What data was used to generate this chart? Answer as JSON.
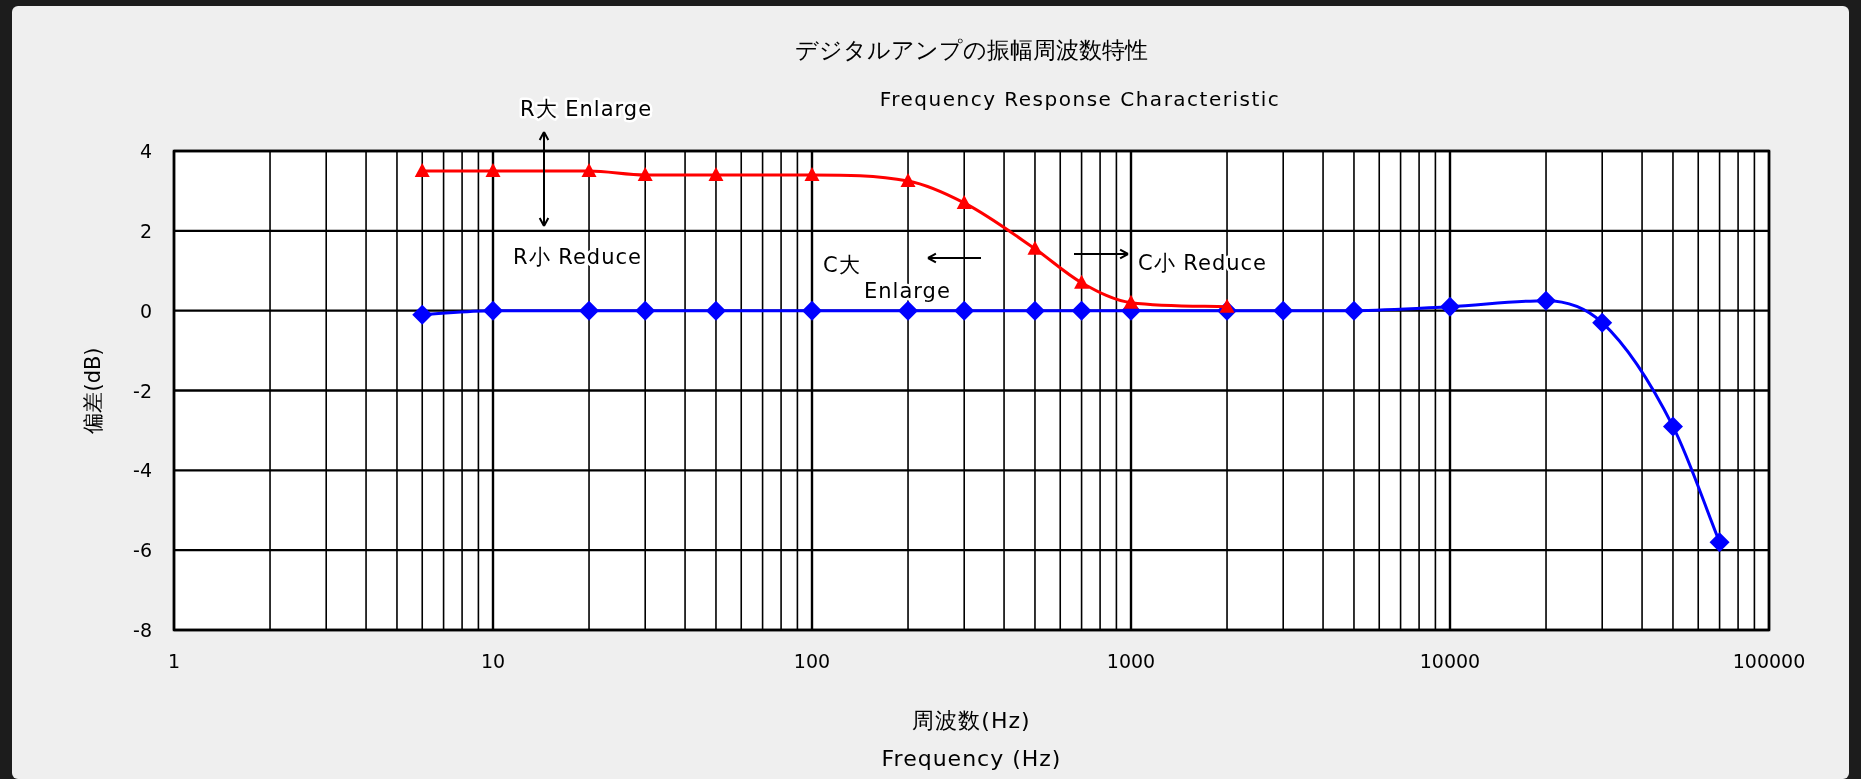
{
  "chart_data": {
    "type": "line",
    "title": "デジタルアンプの振幅周波数特性",
    "subtitle": "Frequency Response Characteristic",
    "xlabel": "周波数(Hz)\nFrequency (Hz)",
    "ylabel": "偏差(dB)",
    "log": "x",
    "xlim": [
      1,
      100000
    ],
    "xticks": [
      1,
      10,
      100,
      1000,
      10000,
      100000
    ],
    "ylim": [
      -8,
      4
    ],
    "yticks": [
      -8,
      -6,
      -4,
      -2,
      0,
      2,
      4
    ],
    "grid": true,
    "line_style": "solid",
    "annotations": [
      "R大 Enlarge",
      "R小 Reduce",
      "C大",
      "Enlarge",
      "C小 Reduce"
    ],
    "series": [
      {
        "color": "#ff0000",
        "marker": "triangle",
        "x": [
          6,
          10,
          20,
          30,
          50,
          100,
          200,
          300,
          500,
          700,
          1000,
          2000
        ],
        "values": [
          3.5,
          3.5,
          3.5,
          3.4,
          3.4,
          3.4,
          3.25,
          2.7,
          1.55,
          0.7,
          0.2,
          0.1
        ]
      },
      {
        "color": "#0000ff",
        "marker": "diamond",
        "x": [
          6,
          10,
          20,
          30,
          50,
          100,
          200,
          300,
          500,
          700,
          1000,
          2000,
          3000,
          5000,
          10000,
          20000,
          30000,
          50000,
          70000
        ],
        "values": [
          -0.1,
          0,
          0,
          0,
          0,
          0,
          0,
          0,
          0,
          0,
          0,
          0,
          0,
          0,
          0.1,
          0.25,
          -0.3,
          -2.9,
          -5.8
        ]
      }
    ]
  }
}
